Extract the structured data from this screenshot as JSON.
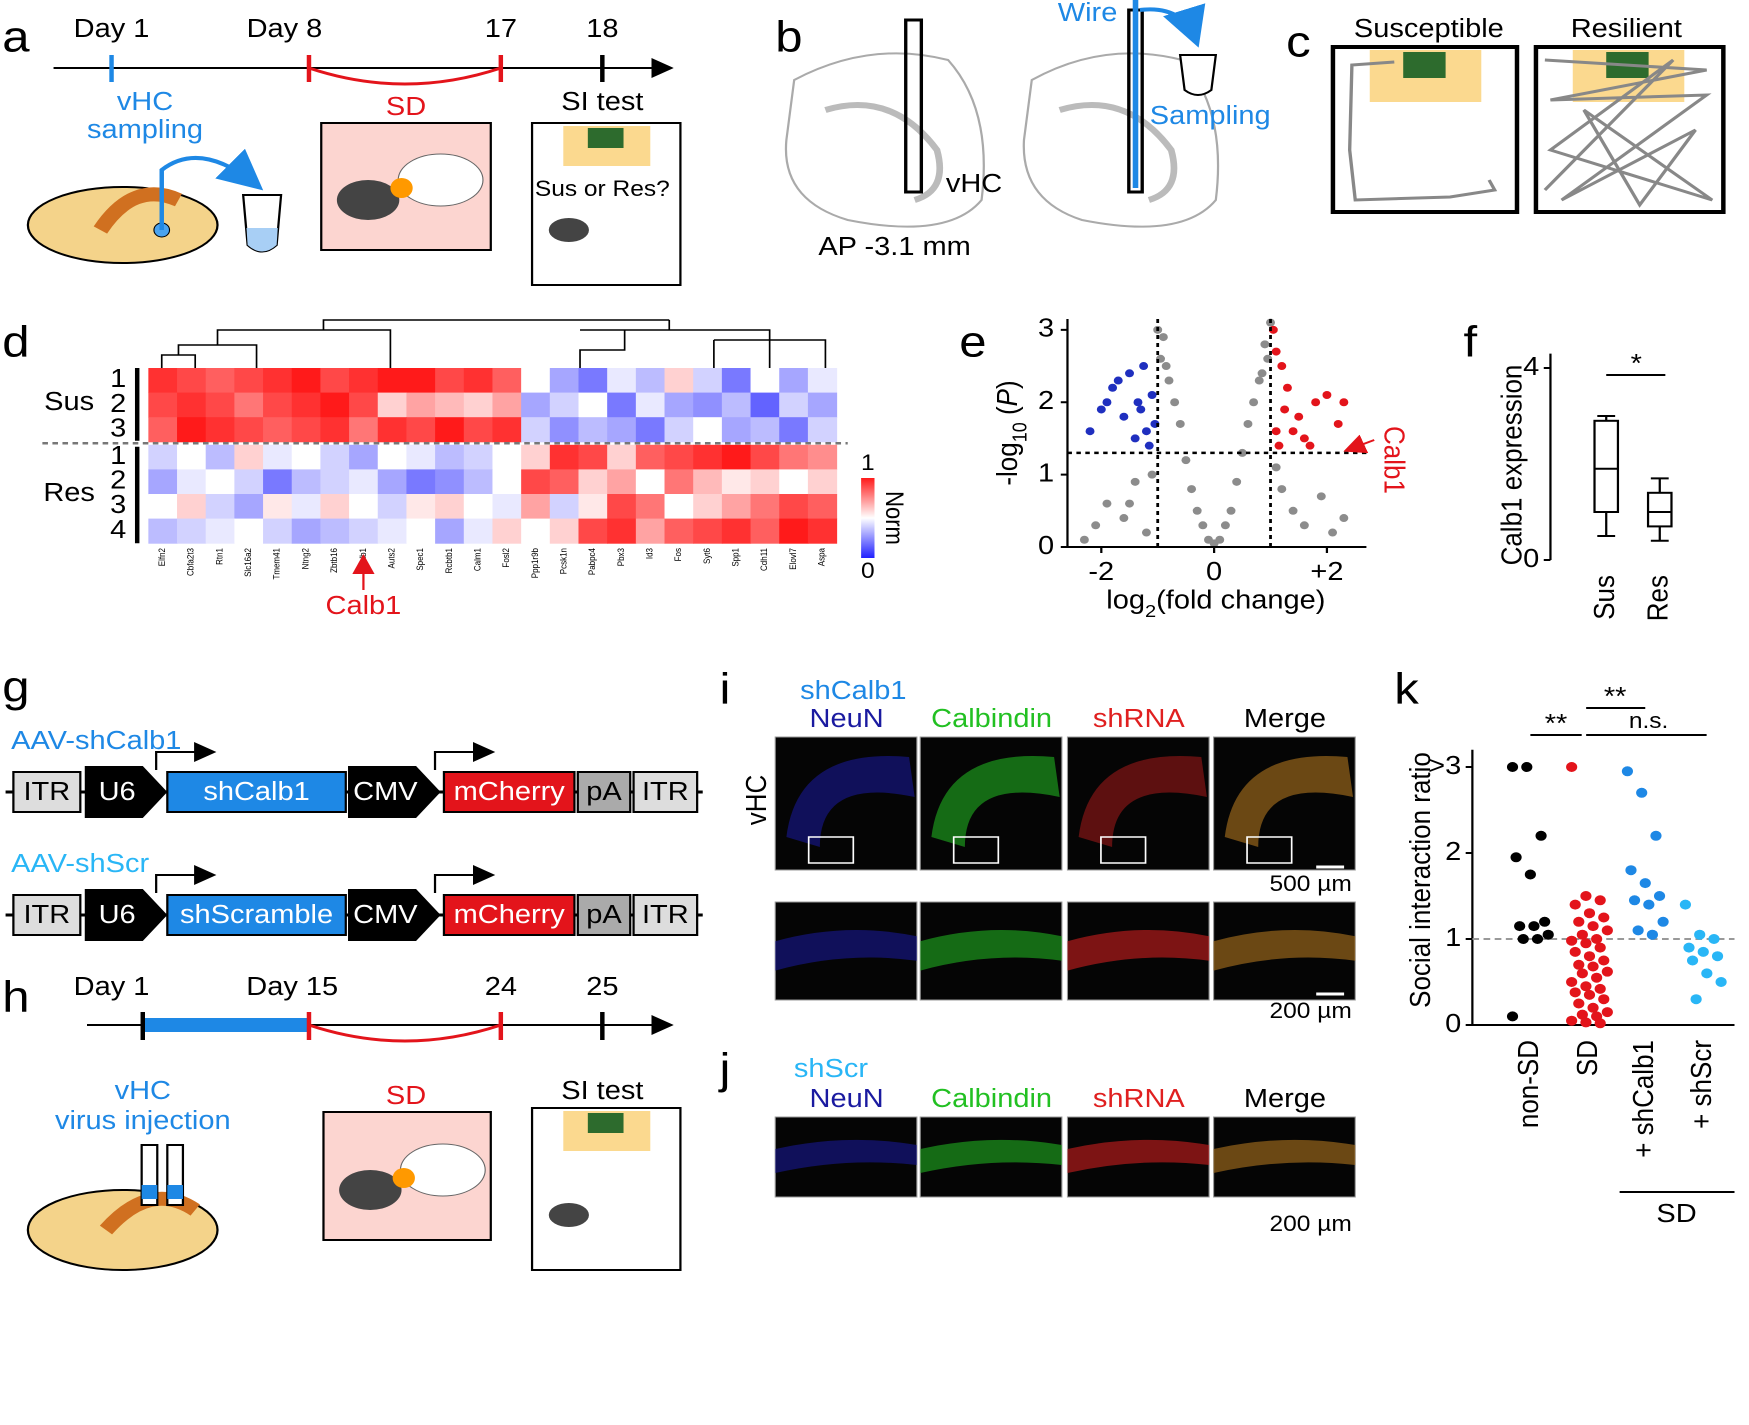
{
  "panels": {
    "a": {
      "label": "a",
      "days": [
        "Day 1",
        "Day 8",
        "17",
        "18"
      ],
      "sampling": [
        "vHC",
        "sampling"
      ],
      "sd": "SD",
      "si": "SI test",
      "question": "Sus or Res?"
    },
    "b": {
      "label": "b",
      "vhc": "vHC",
      "ap": "AP -3.1 mm",
      "wire": "Wire",
      "sampling": "Sampling"
    },
    "c": {
      "label": "c",
      "titles": [
        "Susceptible",
        "Resilient"
      ]
    },
    "g": {
      "label": "g",
      "constructs": [
        {
          "name": "AAV-shCalb1",
          "parts": [
            "ITR",
            "U6",
            "shCalb1",
            "CMV",
            "mCherry",
            "pA",
            "ITR"
          ]
        },
        {
          "name": "AAV-shScr",
          "parts": [
            "ITR",
            "U6",
            "shScramble",
            "CMV",
            "mCherry",
            "pA",
            "ITR"
          ]
        }
      ]
    },
    "h": {
      "label": "h",
      "days": [
        "Day 1",
        "Day 15",
        "24",
        "25"
      ],
      "injection": [
        "vHC",
        "virus injection"
      ],
      "sd": "SD",
      "si": "SI test"
    },
    "i": {
      "label": "i",
      "title": "shCalb1",
      "columns": [
        "NeuN",
        "Calbindin",
        "shRNA",
        "Merge"
      ],
      "region": "vHC",
      "scales": [
        "500 µm",
        "200 µm"
      ]
    },
    "j": {
      "label": "j",
      "title": "shScr",
      "columns": [
        "NeuN",
        "Calbindin",
        "shRNA",
        "Merge"
      ],
      "scale": "200 µm"
    }
  },
  "chart_data": [
    {
      "type": "heatmap",
      "label": "d",
      "groups": [
        "Sus",
        "Res"
      ],
      "rows": [
        "1",
        "2",
        "3",
        "1",
        "2",
        "3",
        "4"
      ],
      "colorbar_label": "Norm",
      "colorbar_ticks": [
        0,
        1
      ],
      "annotation": "Calb1",
      "genes": [
        "Elfn2",
        "Cbfa2t3",
        "Rtn1",
        "Slc16a2",
        "Tmem41",
        "Ntng2",
        "Zbtb16",
        "Calb1",
        "Auts2",
        "Spec1",
        "Rcbtb1",
        "Calm1",
        "Fosl2",
        "Ppp1r9b",
        "Pcsk1n",
        "Pabpc4",
        "Pbx3",
        "Id3",
        "Fos",
        "Syt6",
        "Spp1",
        "Cdh11",
        "Elovl7",
        "Aspa"
      ],
      "matrix": [
        [
          0.95,
          0.9,
          0.85,
          0.9,
          0.95,
          1,
          0.9,
          0.95,
          1,
          1,
          0.9,
          0.95,
          0.85,
          0.5,
          0.3,
          0.2,
          0.45,
          0.35,
          0.6,
          0.4,
          0.2,
          0.5,
          0.3,
          0.45
        ],
        [
          0.9,
          0.95,
          0.9,
          0.8,
          0.9,
          0.95,
          1,
          0.9,
          0.6,
          0.7,
          0.65,
          0.6,
          0.7,
          0.3,
          0.4,
          0.5,
          0.2,
          0.45,
          0.3,
          0.25,
          0.35,
          0.15,
          0.4,
          0.3
        ],
        [
          0.85,
          1,
          0.95,
          0.9,
          0.85,
          0.9,
          0.95,
          0.8,
          0.95,
          0.9,
          1,
          0.9,
          0.95,
          0.4,
          0.25,
          0.35,
          0.3,
          0.2,
          0.4,
          0.5,
          0.3,
          0.35,
          0.2,
          0.4
        ],
        [
          0.4,
          0.5,
          0.35,
          0.6,
          0.45,
          0.5,
          0.4,
          0.3,
          0.5,
          0.45,
          0.35,
          0.4,
          0.5,
          0.6,
          0.95,
          0.9,
          0.6,
          0.85,
          0.9,
          0.95,
          1,
          0.9,
          0.8,
          0.75
        ],
        [
          0.3,
          0.45,
          0.5,
          0.4,
          0.2,
          0.35,
          0.4,
          0.45,
          0.3,
          0.2,
          0.25,
          0.35,
          0.5,
          0.9,
          0.85,
          0.6,
          0.7,
          0.5,
          0.8,
          0.65,
          0.55,
          0.6,
          0.5,
          0.6
        ],
        [
          0.5,
          0.6,
          0.4,
          0.3,
          0.55,
          0.45,
          0.6,
          0.5,
          0.4,
          0.55,
          0.6,
          0.5,
          0.45,
          0.7,
          0.4,
          0.55,
          0.9,
          0.8,
          0.5,
          0.6,
          0.7,
          0.8,
          0.9,
          0.85
        ],
        [
          0.35,
          0.4,
          0.45,
          0.5,
          0.4,
          0.3,
          0.35,
          0.4,
          0.45,
          0.5,
          0.3,
          0.45,
          0.6,
          0.5,
          0.6,
          0.9,
          0.95,
          0.7,
          0.85,
          0.9,
          0.95,
          0.85,
          1,
          0.95
        ]
      ]
    },
    {
      "type": "scatter",
      "label": "e",
      "xlabel": [
        "log",
        "2",
        "(fold change)"
      ],
      "ylabel": [
        "-log",
        "10",
        " (",
        "P",
        ")"
      ],
      "annotation": "Calb1",
      "xlim": [
        -2.6,
        2.7
      ],
      "ylim": [
        0,
        3.15
      ],
      "xticks": [
        -2,
        0,
        {
          "value": 2,
          "label": "+2"
        }
      ],
      "yticks": [
        0,
        1,
        2,
        3
      ],
      "vlines": [
        -1,
        1
      ],
      "hline": 1.3,
      "series": [
        {
          "name": "ns",
          "color": "#8c8c8c",
          "x": [
            -2.3,
            -2.1,
            -1.9,
            -1.6,
            -1.4,
            -1.2,
            -0.9,
            -0.8,
            -0.6,
            -0.5,
            -0.4,
            -0.3,
            -0.2,
            -0.1,
            0,
            0.1,
            0.2,
            0.3,
            0.4,
            0.5,
            0.6,
            0.8,
            0.9,
            1.2,
            1.4,
            1.6,
            1.9,
            2.1,
            2.3,
            -0.7,
            0.7,
            -1.0,
            1.0,
            -0.95,
            0.95,
            -0.85,
            0.85,
            -1.1,
            1.1,
            -1.5
          ],
          "y": [
            0.1,
            0.3,
            0.6,
            0.4,
            0.9,
            0.2,
            2.9,
            2.3,
            1.7,
            1.2,
            0.8,
            0.5,
            0.3,
            0.1,
            0.05,
            0.1,
            0.3,
            0.5,
            0.9,
            1.3,
            1.7,
            2.3,
            2.8,
            0.8,
            0.5,
            0.3,
            0.7,
            0.2,
            0.4,
            2.0,
            2.0,
            3.0,
            3.1,
            2.6,
            2.6,
            2.5,
            2.4,
            1.0,
            1.1,
            0.6
          ]
        },
        {
          "name": "down",
          "color": "#1f2fbf",
          "x": [
            -2.2,
            -1.9,
            -1.7,
            -1.5,
            -1.3,
            -1.1,
            -1.6,
            -1.4,
            -1.2,
            -1.8,
            -2.0,
            -1.35,
            -1.15,
            -1.05,
            -1.25
          ],
          "y": [
            1.6,
            2.0,
            2.3,
            2.4,
            1.9,
            2.1,
            1.8,
            1.5,
            1.6,
            2.2,
            1.9,
            2.0,
            1.4,
            1.7,
            2.5
          ]
        },
        {
          "name": "up",
          "color": "#e3141b",
          "x": [
            1.1,
            1.2,
            1.3,
            1.5,
            1.6,
            1.8,
            2.0,
            2.3,
            1.15,
            1.4,
            1.25,
            1.05,
            2.2,
            1.7,
            1.1
          ],
          "y": [
            2.7,
            2.5,
            2.2,
            1.8,
            1.5,
            2.0,
            2.1,
            2.0,
            1.4,
            1.6,
            1.9,
            3.0,
            1.7,
            1.4,
            1.6
          ]
        }
      ]
    },
    {
      "type": "box",
      "label": "f",
      "ylabel": "Calb1 expression",
      "categories": [
        "Sus",
        "Res"
      ],
      "ylim": [
        0,
        4.3
      ],
      "yticks": [
        0,
        4
      ],
      "significance": "*",
      "boxes": [
        {
          "min": 0.5,
          "q1": 1.0,
          "median": 1.9,
          "q3": 2.9,
          "max": 3.0
        },
        {
          "min": 0.4,
          "q1": 0.7,
          "median": 1.0,
          "q3": 1.4,
          "max": 1.7
        }
      ]
    },
    {
      "type": "strip",
      "label": "k",
      "ylabel": "Social interaction ratio",
      "categories": [
        "non-SD",
        "SD",
        "+ shCalb1",
        "+ shScr"
      ],
      "group": "SD",
      "ylim": [
        0,
        3.2
      ],
      "yticks": [
        0,
        1,
        2,
        {
          "value": 3,
          "label": ">3"
        }
      ],
      "reference": 1,
      "significance": [
        "**",
        "**",
        "n.s."
      ],
      "series": [
        {
          "name": "non-SD",
          "color": "#000000",
          "values": [
            3.0,
            3.0,
            2.2,
            1.95,
            1.75,
            1.2,
            1.15,
            1.15,
            1.05,
            1.0,
            1.0,
            0.1
          ]
        },
        {
          "name": "SD",
          "color": "#e3141b",
          "values": [
            3.0,
            1.5,
            1.45,
            1.4,
            1.3,
            1.25,
            1.2,
            1.15,
            1.1,
            1.05,
            1.0,
            0.98,
            0.95,
            0.9,
            0.85,
            0.8,
            0.75,
            0.7,
            0.68,
            0.62,
            0.6,
            0.55,
            0.5,
            0.45,
            0.42,
            0.38,
            0.35,
            0.3,
            0.25,
            0.2,
            0.15,
            0.12,
            0.1,
            0.05,
            0.03,
            0.02
          ]
        },
        {
          "name": "shCalb1",
          "color": "#1e88e5",
          "values": [
            2.95,
            2.7,
            2.2,
            1.8,
            1.65,
            1.5,
            1.45,
            1.4,
            1.2,
            1.1,
            1.05
          ]
        },
        {
          "name": "shScr",
          "color": "#29b6f6",
          "values": [
            1.4,
            1.05,
            1.0,
            0.9,
            0.85,
            0.8,
            0.75,
            0.6,
            0.5,
            0.3
          ]
        }
      ]
    }
  ]
}
